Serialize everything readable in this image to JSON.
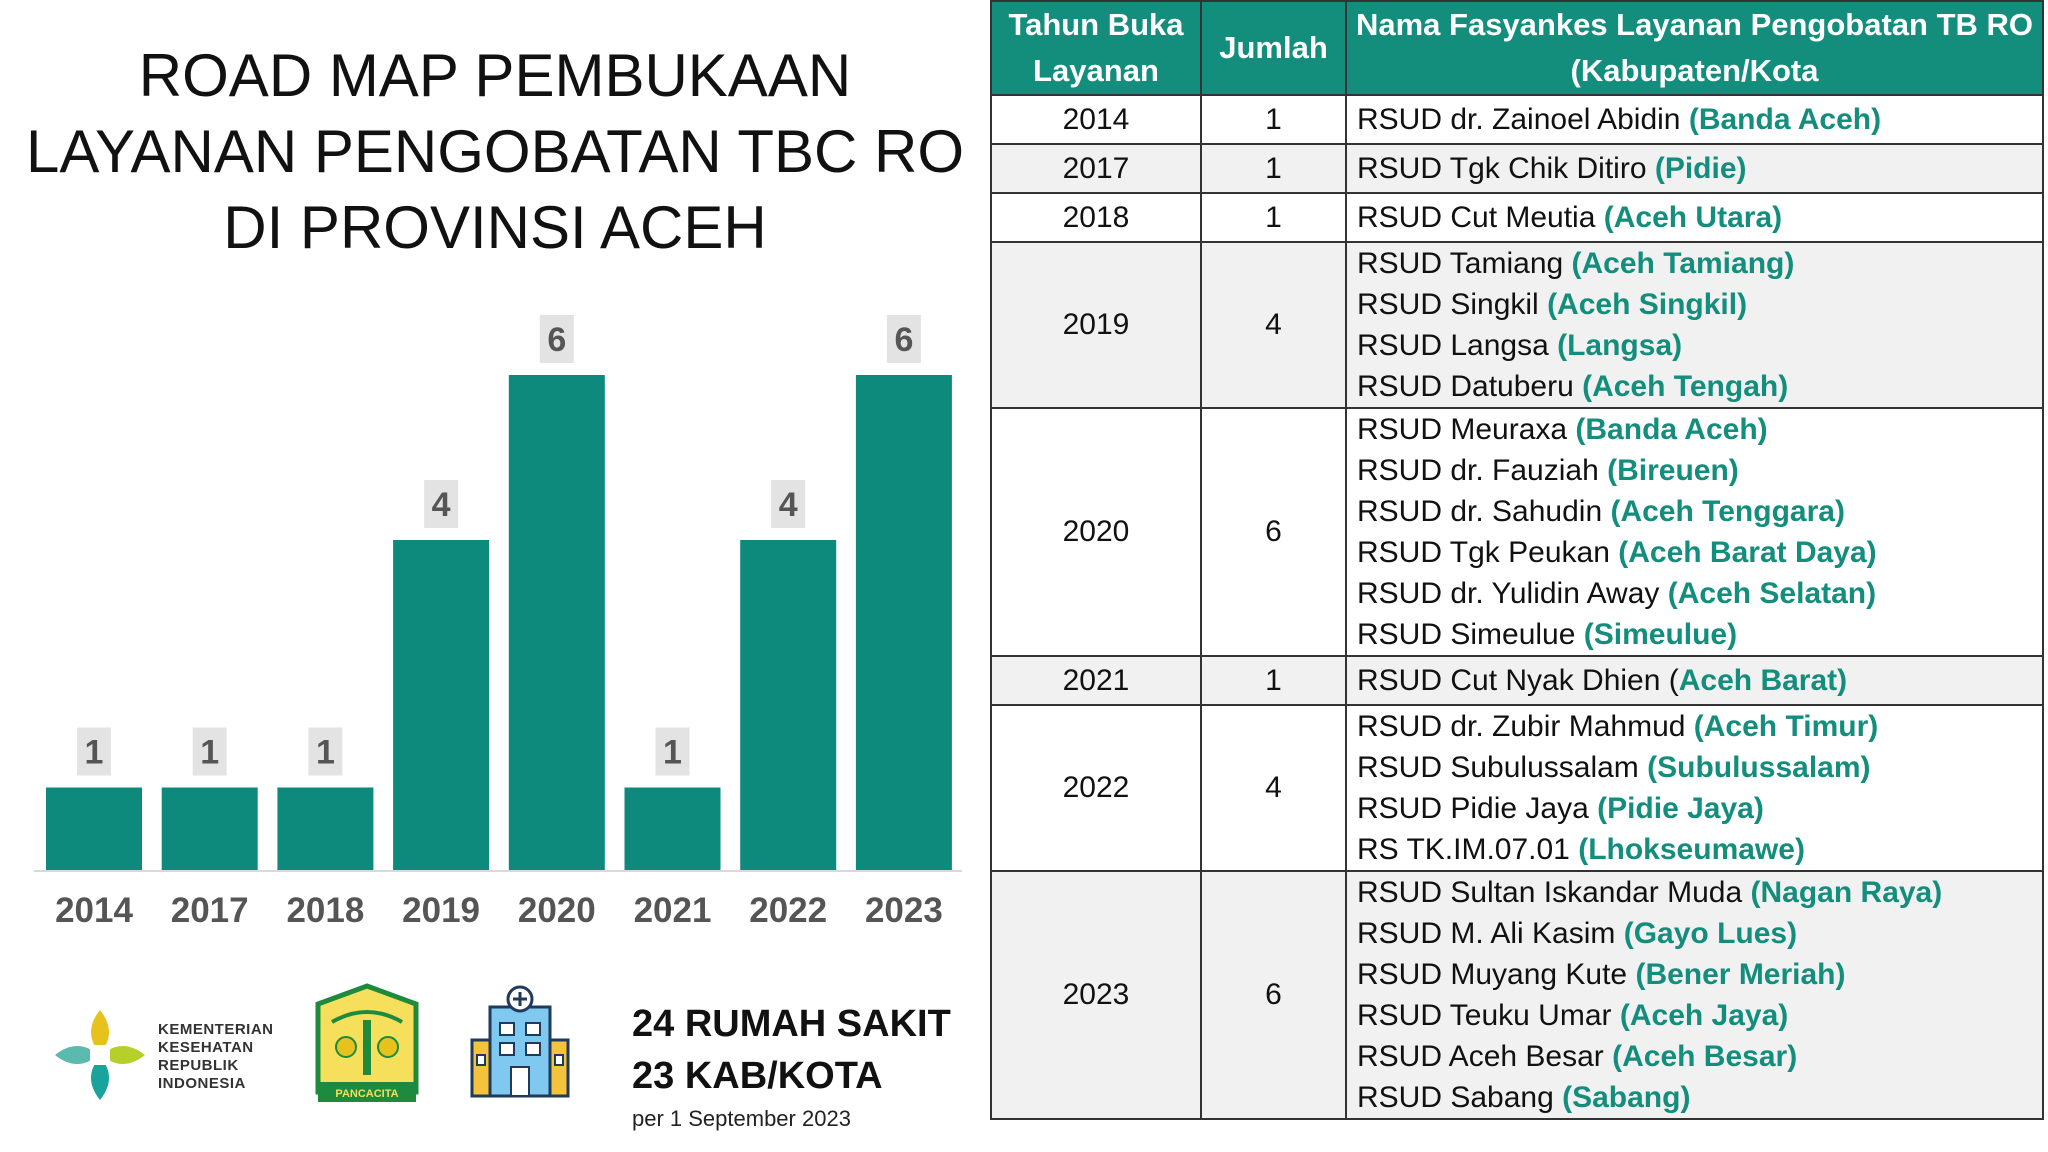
{
  "title_lines": [
    "ROAD MAP PEMBUKAAN",
    "LAYANAN PENGOBATAN TBC RO",
    "DI PROVINSI ACEH"
  ],
  "chart_data": {
    "type": "bar",
    "categories": [
      "2014",
      "2017",
      "2018",
      "2019",
      "2020",
      "2021",
      "2022",
      "2023"
    ],
    "values": [
      1,
      1,
      1,
      4,
      6,
      1,
      4,
      6
    ],
    "ylim": [
      0,
      6
    ],
    "bar_color": "#0d8a7c"
  },
  "summary": {
    "line1": "24 RUMAH SAKIT",
    "line2": "23 KAB/KOTA",
    "note": "per 1 September 2023"
  },
  "logos": {
    "kemenkes_text": [
      "KEMENTERIAN",
      "KESEHATAN",
      "REPUBLIK",
      "INDONESIA"
    ],
    "aceh_emblem_text": "PANCACITA",
    "hospital_icon": "hospital-icon"
  },
  "colors": {
    "accent": "#138d7c",
    "header_bg": "#138d7c"
  },
  "table": {
    "headers": [
      "Tahun Buka Layanan",
      "Jumlah",
      "Nama Fasyankes Layanan Pengobatan TB RO (Kabupaten/Kota"
    ],
    "rows": [
      {
        "year": "2014",
        "count": "1",
        "facilities": [
          {
            "name": "RSUD dr. Zainoel Abidin ",
            "region": "(Banda Aceh)"
          }
        ]
      },
      {
        "year": "2017",
        "count": "1",
        "facilities": [
          {
            "name": "RSUD Tgk Chik Ditiro ",
            "region": "(Pidie)"
          }
        ]
      },
      {
        "year": "2018",
        "count": "1",
        "facilities": [
          {
            "name": "RSUD Cut Meutia ",
            "region": "(Aceh Utara)"
          }
        ]
      },
      {
        "year": "2019",
        "count": "4",
        "facilities": [
          {
            "name": "RSUD Tamiang ",
            "region": "(Aceh Tamiang)"
          },
          {
            "name": "RSUD Singkil ",
            "region": "(Aceh Singkil)"
          },
          {
            "name": "RSUD Langsa ",
            "region": "(Langsa)"
          },
          {
            "name": "RSUD Datuberu ",
            "region": "(Aceh Tengah)"
          }
        ]
      },
      {
        "year": "2020",
        "count": "6",
        "facilities": [
          {
            "name": "RSUD Meuraxa ",
            "region": "(Banda Aceh)"
          },
          {
            "name": "RSUD dr. Fauziah ",
            "region": "(Bireuen)"
          },
          {
            "name": "RSUD dr. Sahudin ",
            "region": "(Aceh Tenggara)"
          },
          {
            "name": "RSUD Tgk Peukan ",
            "region": "(Aceh Barat Daya)"
          },
          {
            "name": "RSUD dr. Yulidin Away ",
            "region": "(Aceh Selatan)"
          },
          {
            "name": "RSUD Simeulue ",
            "region": "(Simeulue)"
          }
        ]
      },
      {
        "year": "2021",
        "count": "1",
        "facilities": [
          {
            "name": "RSUD Cut Nyak Dhien (",
            "region": "Aceh Barat)"
          }
        ]
      },
      {
        "year": "2022",
        "count": "4",
        "facilities": [
          {
            "name": "RSUD dr. Zubir Mahmud ",
            "region": "(Aceh Timur)"
          },
          {
            "name": "RSUD Subulussalam ",
            "region": "(Subulussalam)"
          },
          {
            "name": "RSUD Pidie Jaya ",
            "region": "(Pidie Jaya)"
          },
          {
            "name": "RS TK.IM.07.01 ",
            "region": "(Lhokseumawe)"
          }
        ]
      },
      {
        "year": "2023",
        "count": "6",
        "facilities": [
          {
            "name": "RSUD Sultan Iskandar Muda ",
            "region": "(Nagan Raya)"
          },
          {
            "name": "RSUD M. Ali Kasim ",
            "region": "(Gayo Lues)"
          },
          {
            "name": "RSUD Muyang Kute ",
            "region": "(Bener Meriah)"
          },
          {
            "name": "RSUD Teuku Umar ",
            "region": "(Aceh Jaya)"
          },
          {
            "name": "RSUD Aceh Besar ",
            "region": "(Aceh Besar)"
          },
          {
            "name": "RSUD Sabang ",
            "region": "(Sabang)"
          }
        ]
      }
    ]
  }
}
